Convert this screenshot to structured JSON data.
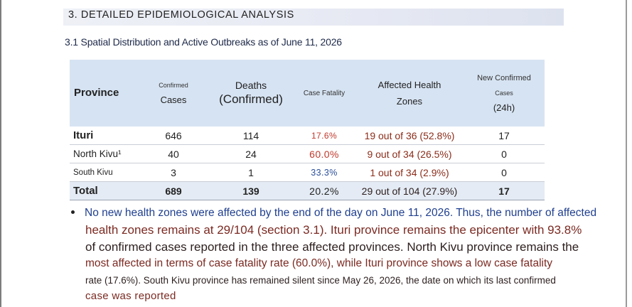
{
  "section": {
    "title": "3. DETAILED EPIDEMIOLOGICAL ANALYSIS"
  },
  "subsection": {
    "title": "3.1 Spatial Distribution and Active Outbreaks as of June 11, 2026"
  },
  "table": {
    "headers": {
      "province": "Province",
      "cases_top": "Confirmed",
      "cases_bottom": "Cases",
      "deaths_top": "Deaths",
      "deaths_bottom": "(Confirmed)",
      "fatality": "Case Fatality",
      "zones_top": "Affected Health",
      "zones_bottom": "Zones",
      "new_top": "New Confirmed",
      "new_mid": "Cases",
      "new_bottom": "(24h)"
    },
    "rows": [
      {
        "province": "Ituri",
        "cases": "646",
        "deaths": "114",
        "fatality": "17.6%",
        "zones": "19 out of 36 (52.8%)",
        "new_cases": "17"
      },
      {
        "province": "North Kivu¹",
        "cases": "40",
        "deaths": "24",
        "fatality": "60.0%",
        "zones": "9 out of 34 (26.5%)",
        "new_cases": "0"
      },
      {
        "province": "South Kivu",
        "cases": "3",
        "deaths": "1",
        "fatality": "33.3%",
        "zones": "1 out of 34 (2.9%)",
        "new_cases": "0"
      }
    ],
    "total": {
      "province": "Total",
      "cases": "689",
      "deaths": "139",
      "fatality": "20.2%",
      "zones": "29 out of 104 (27.9%)",
      "new_cases": "17"
    }
  },
  "paragraph": {
    "lines": [
      "No new health zones were affected by the end of the day on June 11, 2026. Thus, the number of affected",
      "health zones remains at 29/104 (section 3.1). Ituri province remains the epicenter with 93.8%",
      "of confirmed cases reported in the three affected provinces. North Kivu province remains the",
      "most affected in terms of case fatality rate (60.0%), while Ituri province shows a low case fatality",
      "rate (17.6%). South Kivu province has remained silent since May 26, 2026, the date on which its last confirmed",
      "case was reported"
    ]
  },
  "colors": {
    "header_bg": "#d6e3f2",
    "total_bg": "#e4ebf4",
    "fatality_ituri": "#c0392b",
    "fatality_north_kivu": "#c0392b",
    "fatality_south_kivu": "#2a4f9a",
    "fatality_total": "#222222",
    "zones_text": "#8b2d1a",
    "para_blue": "#1f3f8f",
    "para_maroon": "#7b2a22",
    "para_dark": "#2d1f1f"
  }
}
